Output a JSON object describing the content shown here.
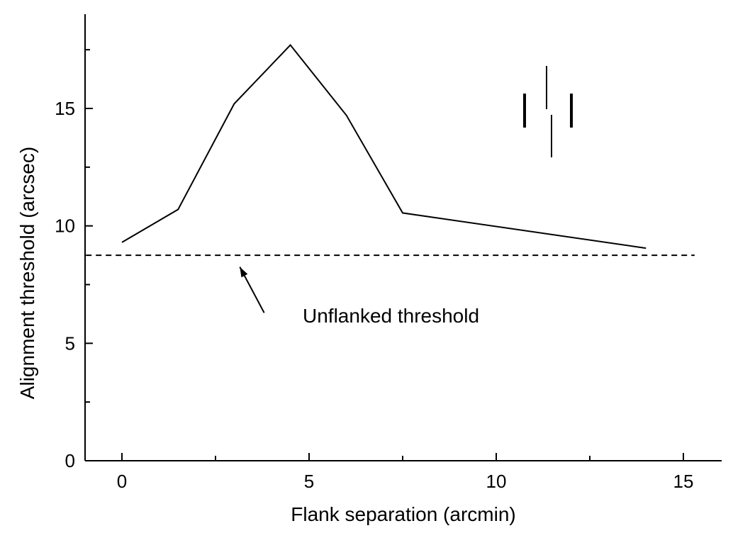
{
  "chart_data": {
    "type": "line",
    "title": "",
    "xlabel": "Flank separation (arcmin)",
    "ylabel": "Alignment threshold (arcsec)",
    "xlim": [
      -1,
      16
    ],
    "ylim": [
      0,
      19
    ],
    "x_ticks_major": [
      0,
      5,
      10,
      15
    ],
    "x_ticks_minor": [
      2.5,
      7.5,
      12.5
    ],
    "y_ticks_major": [
      0,
      5,
      10,
      15
    ],
    "y_ticks_minor": [
      2.5,
      7.5,
      12.5,
      17.5
    ],
    "grid": false,
    "legend": "none",
    "series": [
      {
        "x": [
          0,
          1.5,
          3,
          4.5,
          6,
          7.5,
          14
        ],
        "y": [
          9.3,
          10.7,
          15.2,
          17.7,
          14.7,
          10.55,
          9.05
        ]
      }
    ],
    "reference_line": {
      "y": 8.75,
      "x_range": [
        -1,
        15.3
      ],
      "style": "dashed"
    },
    "annotation": {
      "text": "Unflanked threshold",
      "arrow_from": [
        3.8,
        6.3
      ],
      "arrow_to": [
        3.15,
        8.25
      ]
    },
    "stimulus_icon": {
      "description_hidden": true,
      "flanks": "thick vertical bars",
      "targets": "thin offset vertical lines"
    }
  }
}
